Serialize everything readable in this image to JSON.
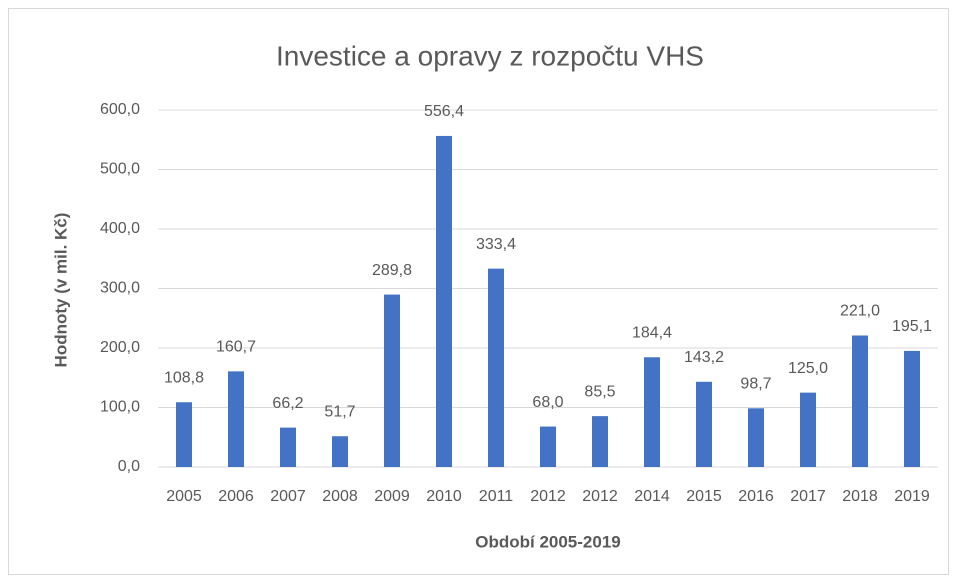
{
  "chart_data": {
    "type": "bar",
    "title": "Investice a opravy z rozpočtu VHS",
    "x_label": "Období 2005-2019",
    "y_label": "Hodnoty (v mil. Kč)",
    "categories": [
      "2005",
      "2006",
      "2007",
      "2008",
      "2009",
      "2010",
      "2011",
      "2012",
      "2012",
      "2014",
      "2015",
      "2016",
      "2017",
      "2018",
      "2019"
    ],
    "values": [
      108.8,
      160.7,
      66.2,
      51.7,
      289.8,
      556.4,
      333.4,
      68.0,
      85.5,
      184.4,
      143.2,
      98.7,
      125.0,
      221.0,
      195.1
    ],
    "value_labels": [
      "108,8",
      "160,7",
      "66,2",
      "51,7",
      "289,8",
      "556,4",
      "333,4",
      "68,0",
      "85,5",
      "184,4",
      "143,2",
      "98,7",
      "125,0",
      "221,0",
      "195,1"
    ],
    "color": "#4472c4",
    "ylim": [
      0,
      600
    ],
    "yticks": [
      {
        "value": 0,
        "label": "0,0"
      },
      {
        "value": 100,
        "label": "100,0"
      },
      {
        "value": 200,
        "label": "200,0"
      },
      {
        "value": 300,
        "label": "300,0"
      },
      {
        "value": 400,
        "label": "400,0"
      },
      {
        "value": 500,
        "label": "500,0"
      },
      {
        "value": 600,
        "label": "600,0"
      }
    ],
    "grid": true
  }
}
